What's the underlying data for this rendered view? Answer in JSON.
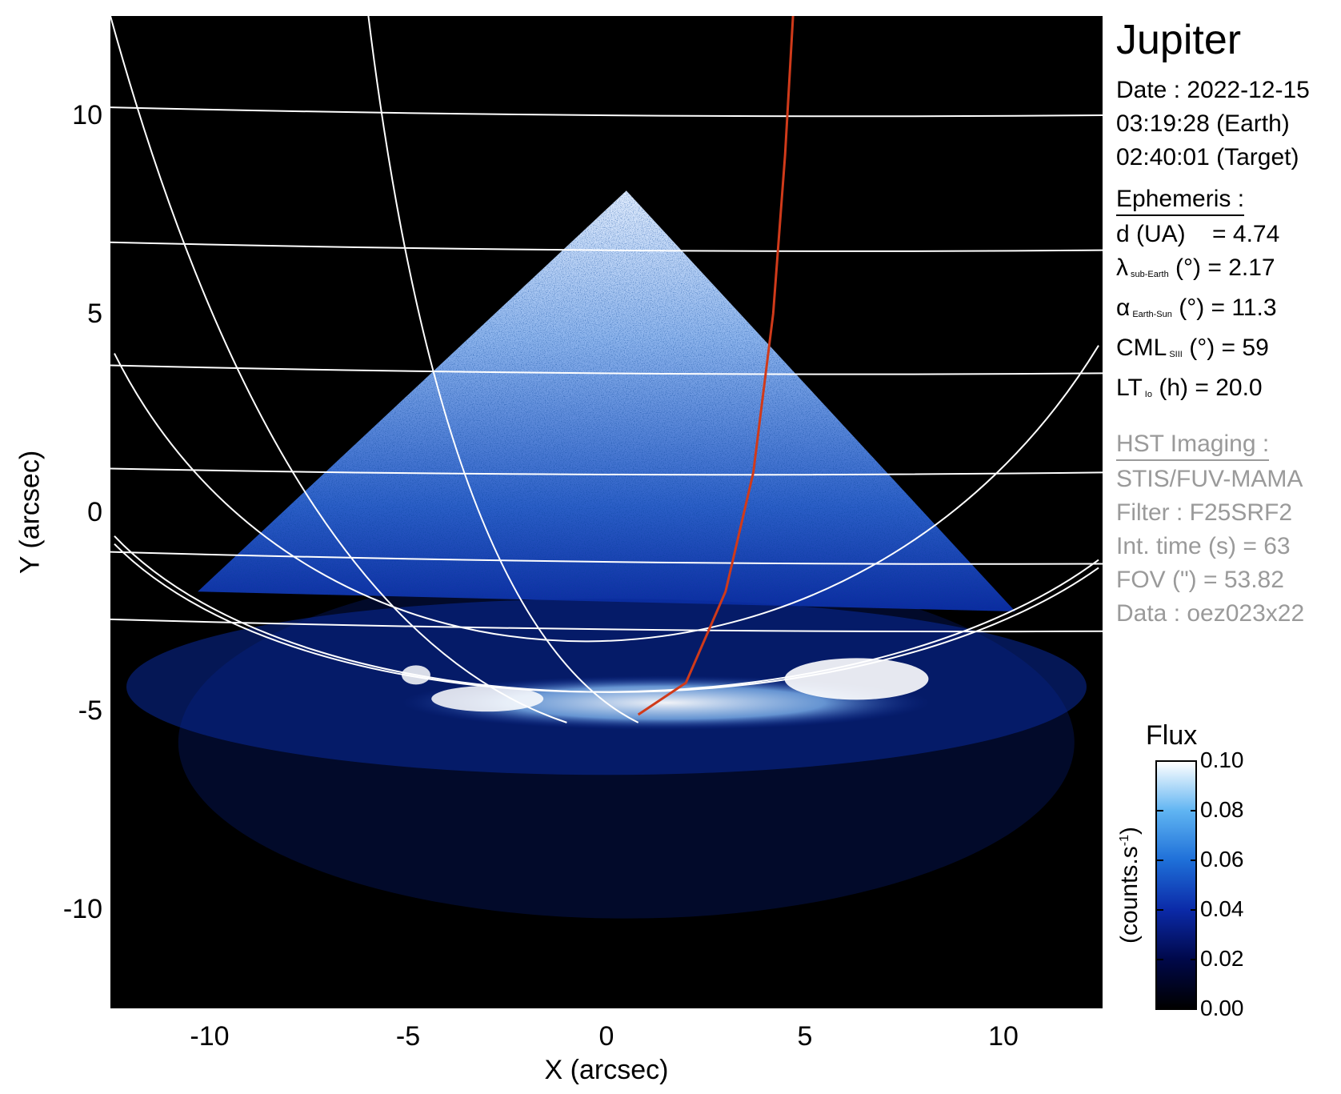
{
  "planet": "Jupiter",
  "observation": {
    "date_line": "Date : 2022-12-15",
    "earth_time_line": "03:19:28 (Earth)",
    "target_time_line": "02:40:01 (Target)"
  },
  "ephemeris": {
    "title": "Ephemeris :",
    "distance": {
      "label": "d (UA)",
      "value": "= 4.74"
    },
    "sub_earth_lat": {
      "symbol": "λ",
      "subscript": "sub-Earth",
      "unit": "(°)",
      "value": "= 2.17"
    },
    "phase_angle": {
      "symbol": "α",
      "subscript": "Earth-Sun",
      "unit": "(°)",
      "value": "= 11.3"
    },
    "cml": {
      "symbol": "CML",
      "subscript": "SIII",
      "unit": "(°)",
      "value": "= 59"
    },
    "lt_io": {
      "symbol": "LT",
      "subscript": "Io",
      "unit": "(h)",
      "value": "= 20.0"
    }
  },
  "imaging": {
    "title": "HST Imaging :",
    "instrument": "STIS/FUV-MAMA",
    "filter": "Filter : F25SRF2",
    "int_time": "Int. time (s) = 63",
    "fov": "FOV (\") = 53.82",
    "data": "Data : oez023x22"
  },
  "colorbar": {
    "title": "Flux",
    "units_main": "(counts.s",
    "units_sup": "-1",
    "units_close": ")",
    "ticks": [
      "0.00",
      "0.02",
      "0.04",
      "0.06",
      "0.08",
      "0.10"
    ],
    "tick_values": [
      0.0,
      0.02,
      0.04,
      0.06,
      0.08,
      0.1
    ],
    "range": [
      0.0,
      0.1
    ],
    "colors": [
      "#000000",
      "#00084a",
      "#0b2aa8",
      "#1e6fd8",
      "#5fb4f2",
      "#ffffff"
    ]
  },
  "chart_data": {
    "type": "heatmap",
    "xlabel": "X (arcsec)",
    "ylabel": "Y (arcsec)",
    "xlim": [
      -12.5,
      12.5
    ],
    "ylim": [
      -12.5,
      12.5
    ],
    "x_ticks": [
      "-10",
      "-5",
      "0",
      "5",
      "10"
    ],
    "x_tick_values": [
      -10,
      -5,
      0,
      5,
      10
    ],
    "y_ticks": [
      "10",
      "5",
      "0",
      "-5",
      "-10"
    ],
    "y_tick_values": [
      10,
      5,
      0,
      -5,
      -10
    ],
    "image_region": {
      "apex": [
        0.5,
        8.1
      ],
      "left_corner": [
        -10.3,
        -2.0
      ],
      "right_corner": [
        10.3,
        -2.5
      ]
    },
    "auroral_oval_center_y": -5.0,
    "grid_color": "#ffffff",
    "footprint_color": "#d03a1a",
    "latitude_lines": [
      {
        "y_left": 10.2,
        "y_right": 10.0
      },
      {
        "y_left": 6.8,
        "y_right": 6.6
      },
      {
        "y_left": 3.7,
        "y_right": 3.5
      },
      {
        "y_left": 1.1,
        "y_right": 1.0
      },
      {
        "y_left": -1.0,
        "y_right": -1.3
      },
      {
        "y_left": -2.7,
        "y_right": -3.0
      }
    ],
    "footprint_curve": [
      [
        0.8,
        -5.1
      ],
      [
        2.0,
        -4.3
      ],
      [
        3.0,
        -2.0
      ],
      [
        3.7,
        1.0
      ],
      [
        4.2,
        5.0
      ],
      [
        4.5,
        9.0
      ],
      [
        4.7,
        12.5
      ]
    ]
  }
}
